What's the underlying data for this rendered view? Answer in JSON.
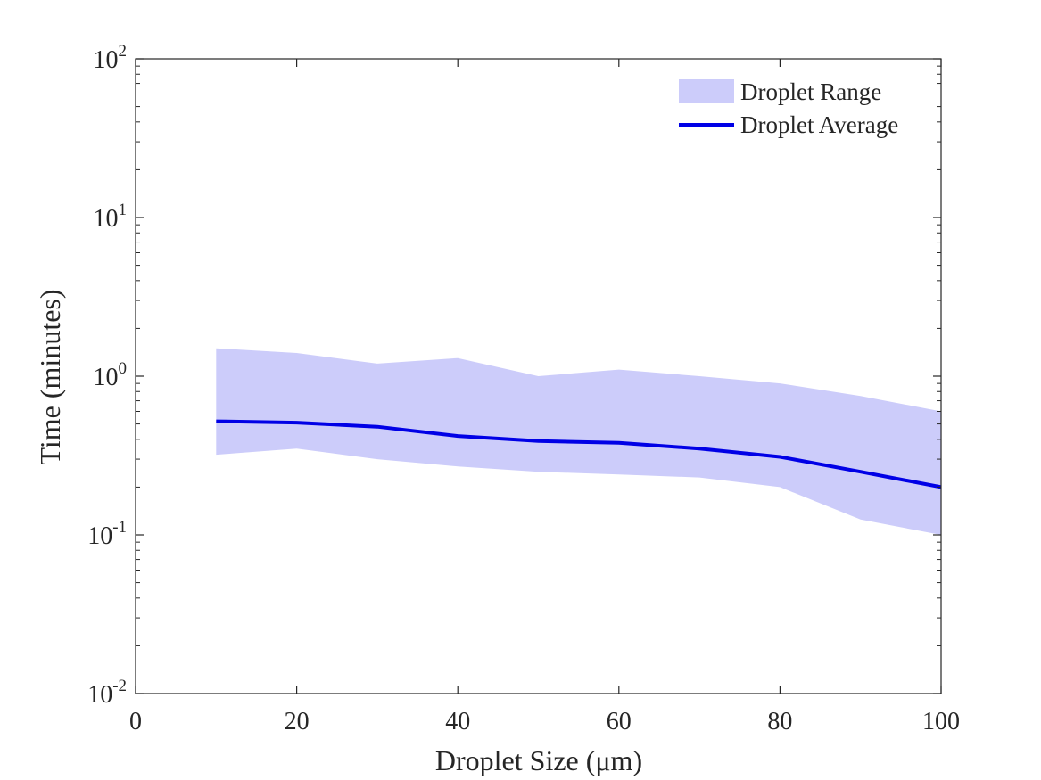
{
  "chart_data": {
    "type": "area",
    "xlabel": "Droplet Size (μm)",
    "ylabel": "Time (minutes)",
    "xlim": [
      0,
      100
    ],
    "ylim": [
      0.01,
      100
    ],
    "yscale": "log",
    "xticks": [
      0,
      20,
      40,
      60,
      80,
      100
    ],
    "xtick_labels": [
      "0",
      "20",
      "40",
      "60",
      "80",
      "100"
    ],
    "yticks": [
      0.01,
      0.1,
      1,
      10,
      100
    ],
    "ytick_labels": [
      {
        "base": "10",
        "exp": "-2"
      },
      {
        "base": "10",
        "exp": "-1"
      },
      {
        "base": "10",
        "exp": "0"
      },
      {
        "base": "10",
        "exp": "1"
      },
      {
        "base": "10",
        "exp": "2"
      }
    ],
    "grid": false,
    "legend_position": "top-right",
    "x": [
      10,
      20,
      30,
      40,
      50,
      60,
      70,
      80,
      90,
      100
    ],
    "series": [
      {
        "name": "Droplet Range",
        "kind": "band",
        "color": "#ccccfa",
        "upper": [
          1.5,
          1.4,
          1.2,
          1.3,
          1.0,
          1.1,
          1.0,
          0.9,
          0.75,
          0.6
        ],
        "lower": [
          0.32,
          0.35,
          0.3,
          0.27,
          0.25,
          0.24,
          0.23,
          0.2,
          0.125,
          0.1
        ]
      },
      {
        "name": "Droplet Average",
        "kind": "line",
        "color": "#0000e6",
        "values": [
          0.52,
          0.51,
          0.48,
          0.42,
          0.39,
          0.38,
          0.35,
          0.31,
          0.25,
          0.2
        ]
      }
    ]
  }
}
